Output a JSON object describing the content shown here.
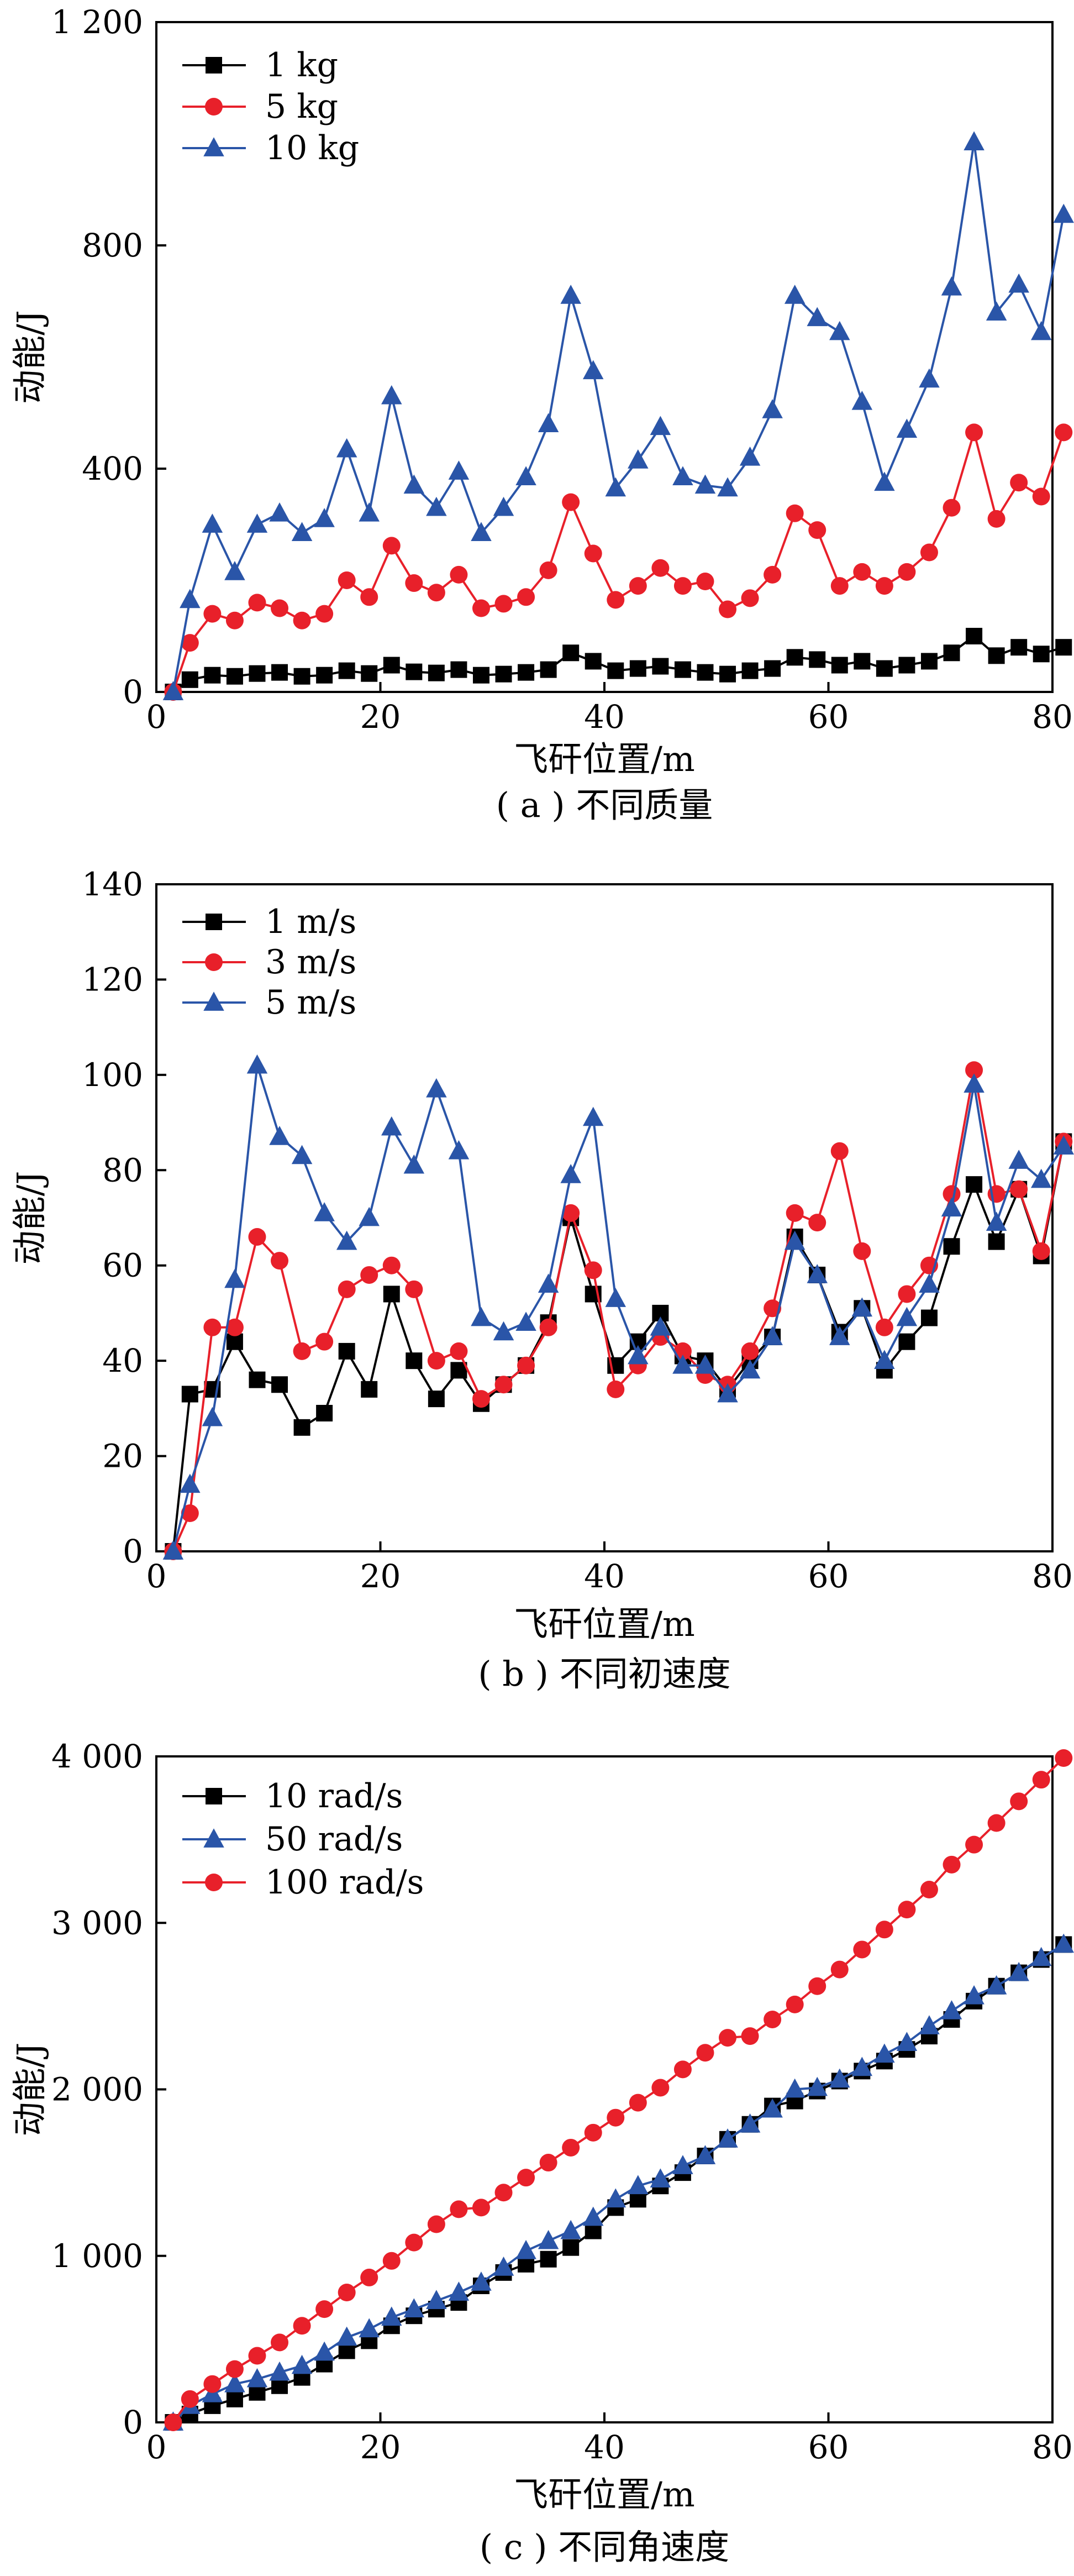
{
  "chart_data": [
    {
      "type": "line",
      "caption": "( a ) 不同质量",
      "xlabel": "飞矸位置/m",
      "ylabel": "动能/J",
      "xlim": [
        0,
        80
      ],
      "ylim": [
        0,
        1200
      ],
      "xticks": [
        0,
        20,
        40,
        60,
        80
      ],
      "yticks": [
        0,
        400,
        800,
        1200
      ],
      "ytick_labels": [
        "0",
        "400",
        "800",
        "1 200"
      ],
      "grid": false,
      "legend": "top-left",
      "x": [
        1.5,
        3,
        5,
        7,
        9,
        11,
        13,
        15,
        17,
        19,
        21,
        23,
        25,
        27,
        29,
        31,
        33,
        35,
        37,
        39,
        41,
        43,
        45,
        47,
        49,
        51,
        53,
        55,
        57,
        59,
        61,
        63,
        65,
        67,
        69,
        71,
        73,
        75,
        77,
        79,
        81
      ],
      "series": [
        {
          "name": "1 kg",
          "marker": "square",
          "color": "#000000",
          "values": [
            0,
            22,
            30,
            28,
            33,
            35,
            28,
            30,
            38,
            33,
            48,
            36,
            34,
            40,
            30,
            32,
            35,
            40,
            70,
            55,
            38,
            42,
            46,
            40,
            35,
            32,
            38,
            42,
            62,
            58,
            48,
            55,
            42,
            48,
            55,
            70,
            100,
            65,
            80,
            68,
            80
          ]
        },
        {
          "name": "5 kg",
          "marker": "circle",
          "color": "#e8202a",
          "values": [
            0,
            88,
            140,
            128,
            160,
            150,
            128,
            140,
            200,
            170,
            262,
            195,
            178,
            210,
            150,
            158,
            170,
            218,
            340,
            248,
            165,
            190,
            222,
            190,
            198,
            148,
            168,
            210,
            320,
            290,
            190,
            215,
            190,
            215,
            250,
            330,
            465,
            310,
            375,
            350,
            465
          ]
        },
        {
          "name": "10 kg",
          "marker": "triangle",
          "color": "#2a55a8",
          "values": [
            0,
            165,
            300,
            215,
            300,
            320,
            285,
            310,
            435,
            320,
            530,
            370,
            330,
            395,
            285,
            330,
            385,
            480,
            710,
            575,
            365,
            415,
            475,
            385,
            370,
            365,
            420,
            505,
            710,
            670,
            645,
            520,
            375,
            470,
            560,
            725,
            985,
            680,
            730,
            645,
            855
          ]
        }
      ]
    },
    {
      "type": "line",
      "caption": "( b ) 不同初速度",
      "xlabel": "飞矸位置/m",
      "ylabel": "动能/J",
      "xlim": [
        0,
        80
      ],
      "ylim": [
        0,
        140
      ],
      "xticks": [
        0,
        20,
        40,
        60,
        80
      ],
      "yticks": [
        0,
        20,
        40,
        60,
        80,
        100,
        120,
        140
      ],
      "ytick_labels": [
        "0",
        "20",
        "40",
        "60",
        "80",
        "100",
        "120",
        "140"
      ],
      "grid": false,
      "legend": "top-left",
      "x": [
        1.5,
        3,
        5,
        7,
        9,
        11,
        13,
        15,
        17,
        19,
        21,
        23,
        25,
        27,
        29,
        31,
        33,
        35,
        37,
        39,
        41,
        43,
        45,
        47,
        49,
        51,
        53,
        55,
        57,
        59,
        61,
        63,
        65,
        67,
        69,
        71,
        73,
        75,
        77,
        79,
        81
      ],
      "series": [
        {
          "name": "1 m/s",
          "marker": "square",
          "color": "#000000",
          "values": [
            0,
            33,
            34,
            44,
            36,
            35,
            26,
            29,
            42,
            34,
            54,
            40,
            32,
            38,
            31,
            35,
            39,
            48,
            70,
            54,
            39,
            44,
            50,
            41,
            40,
            34,
            40,
            45,
            66,
            58,
            46,
            51,
            38,
            44,
            49,
            64,
            77,
            65,
            76,
            62,
            86
          ]
        },
        {
          "name": "3 m/s",
          "marker": "circle",
          "color": "#e8202a",
          "values": [
            0,
            8,
            47,
            47,
            66,
            61,
            42,
            44,
            55,
            58,
            60,
            55,
            40,
            42,
            32,
            35,
            39,
            47,
            71,
            59,
            34,
            39,
            45,
            42,
            37,
            35,
            42,
            51,
            71,
            69,
            84,
            63,
            47,
            54,
            60,
            75,
            101,
            75,
            76,
            63,
            86
          ]
        },
        {
          "name": "5 m/s",
          "marker": "triangle",
          "color": "#2a55a8",
          "values": [
            0,
            14,
            28,
            57,
            102,
            87,
            83,
            71,
            65,
            70,
            89,
            81,
            97,
            84,
            49,
            46,
            48,
            56,
            79,
            91,
            53,
            41,
            47,
            39,
            39,
            33,
            38,
            45,
            65,
            58,
            45,
            51,
            40,
            49,
            56,
            72,
            98,
            69,
            82,
            78,
            85
          ]
        }
      ]
    },
    {
      "type": "line",
      "caption": "( c ) 不同角速度",
      "xlabel": "飞矸位置/m",
      "ylabel": "动能/J",
      "xlim": [
        0,
        80
      ],
      "ylim": [
        0,
        4000
      ],
      "xticks": [
        0,
        20,
        40,
        60,
        80
      ],
      "yticks": [
        0,
        1000,
        2000,
        3000,
        4000
      ],
      "ytick_labels": [
        "0",
        "1 000",
        "2 000",
        "3 000",
        "4 000"
      ],
      "grid": false,
      "legend": "top-left",
      "x": [
        1.5,
        3,
        5,
        7,
        9,
        11,
        13,
        15,
        17,
        19,
        21,
        23,
        25,
        27,
        29,
        31,
        33,
        35,
        37,
        39,
        41,
        43,
        45,
        47,
        49,
        51,
        53,
        55,
        57,
        59,
        61,
        63,
        65,
        67,
        69,
        71,
        73,
        75,
        77,
        79,
        81
      ],
      "series": [
        {
          "name": "10 rad/s",
          "marker": "square",
          "color": "#000000",
          "values": [
            0,
            50,
            100,
            140,
            180,
            220,
            270,
            350,
            430,
            490,
            580,
            640,
            680,
            720,
            820,
            900,
            950,
            980,
            1050,
            1150,
            1290,
            1340,
            1420,
            1500,
            1600,
            1700,
            1790,
            1900,
            1930,
            1990,
            2050,
            2110,
            2170,
            2240,
            2320,
            2420,
            2530,
            2620,
            2700,
            2780,
            2870
          ]
        },
        {
          "name": "50 rad/s",
          "marker": "triangle",
          "color": "#2a55a8",
          "values": [
            0,
            100,
            170,
            230,
            260,
            300,
            340,
            420,
            510,
            560,
            630,
            680,
            730,
            780,
            840,
            930,
            1030,
            1090,
            1150,
            1230,
            1340,
            1420,
            1460,
            1540,
            1600,
            1700,
            1790,
            1880,
            2000,
            2010,
            2060,
            2130,
            2210,
            2280,
            2380,
            2470,
            2560,
            2620,
            2700,
            2790,
            2870
          ]
        },
        {
          "name": "100 rad/s",
          "marker": "circle",
          "color": "#e8202a",
          "values": [
            0,
            140,
            230,
            320,
            400,
            480,
            580,
            680,
            780,
            870,
            970,
            1080,
            1190,
            1280,
            1290,
            1380,
            1470,
            1560,
            1650,
            1740,
            1830,
            1920,
            2010,
            2120,
            2220,
            2310,
            2320,
            2420,
            2510,
            2620,
            2720,
            2840,
            2960,
            3080,
            3200,
            3350,
            3470,
            3600,
            3730,
            3860,
            3990
          ]
        }
      ]
    }
  ]
}
